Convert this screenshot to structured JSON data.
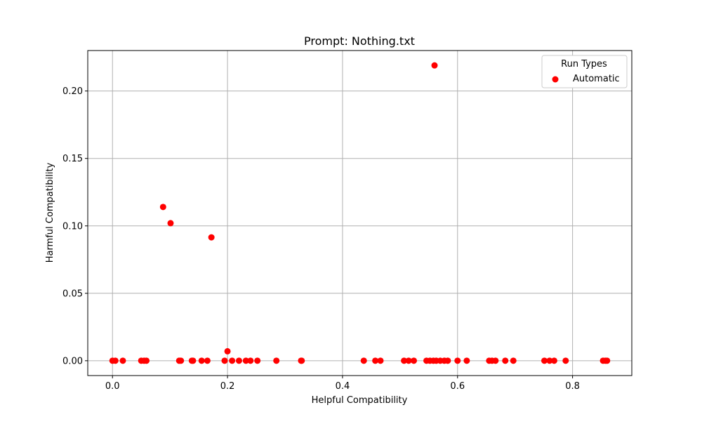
{
  "chart_data": {
    "type": "scatter",
    "title": "Prompt: Nothing.txt",
    "xlabel": "Helpful Compatibility",
    "ylabel": "Harmful Compatibility",
    "xlim": [
      -0.043,
      0.903
    ],
    "ylim": [
      -0.011,
      0.23
    ],
    "x_ticks": [
      0.0,
      0.2,
      0.4,
      0.6,
      0.8
    ],
    "x_tick_labels": [
      "0.0",
      "0.2",
      "0.4",
      "0.6",
      "0.8"
    ],
    "y_ticks": [
      0.0,
      0.05,
      0.1,
      0.15,
      0.2
    ],
    "y_tick_labels": [
      "0.00",
      "0.05",
      "0.10",
      "0.15",
      "0.20"
    ],
    "grid": true,
    "legend": {
      "title": "Run Types",
      "placement": "top-right",
      "entries": [
        "Automatic"
      ]
    },
    "series": [
      {
        "name": "Automatic",
        "color": "#ff0000",
        "points": [
          [
            0.0,
            0.0
          ],
          [
            0.005,
            0.0
          ],
          [
            0.018,
            0.0
          ],
          [
            0.05,
            0.0
          ],
          [
            0.055,
            0.0
          ],
          [
            0.059,
            0.0
          ],
          [
            0.088,
            0.114
          ],
          [
            0.101,
            0.102
          ],
          [
            0.116,
            0.0
          ],
          [
            0.119,
            0.0
          ],
          [
            0.138,
            0.0
          ],
          [
            0.14,
            0.0
          ],
          [
            0.155,
            0.0
          ],
          [
            0.165,
            0.0
          ],
          [
            0.172,
            0.0915
          ],
          [
            0.195,
            0.0
          ],
          [
            0.2,
            0.007
          ],
          [
            0.208,
            0.0
          ],
          [
            0.22,
            0.0
          ],
          [
            0.232,
            0.0
          ],
          [
            0.24,
            0.0
          ],
          [
            0.252,
            0.0
          ],
          [
            0.285,
            0.0
          ],
          [
            0.328,
            0.0
          ],
          [
            0.329,
            0.0
          ],
          [
            0.437,
            0.0
          ],
          [
            0.457,
            0.0
          ],
          [
            0.466,
            0.0
          ],
          [
            0.507,
            0.0
          ],
          [
            0.515,
            0.0
          ],
          [
            0.524,
            0.0
          ],
          [
            0.546,
            0.0
          ],
          [
            0.552,
            0.0
          ],
          [
            0.558,
            0.0
          ],
          [
            0.56,
            0.219
          ],
          [
            0.563,
            0.0
          ],
          [
            0.57,
            0.0
          ],
          [
            0.577,
            0.0
          ],
          [
            0.583,
            0.0
          ],
          [
            0.6,
            0.0
          ],
          [
            0.616,
            0.0
          ],
          [
            0.655,
            0.0
          ],
          [
            0.66,
            0.0
          ],
          [
            0.666,
            0.0
          ],
          [
            0.683,
            0.0
          ],
          [
            0.697,
            0.0
          ],
          [
            0.751,
            0.0
          ],
          [
            0.76,
            0.0
          ],
          [
            0.768,
            0.0
          ],
          [
            0.788,
            0.0
          ],
          [
            0.853,
            0.0
          ],
          [
            0.857,
            0.0
          ],
          [
            0.86,
            0.0
          ]
        ]
      }
    ]
  }
}
